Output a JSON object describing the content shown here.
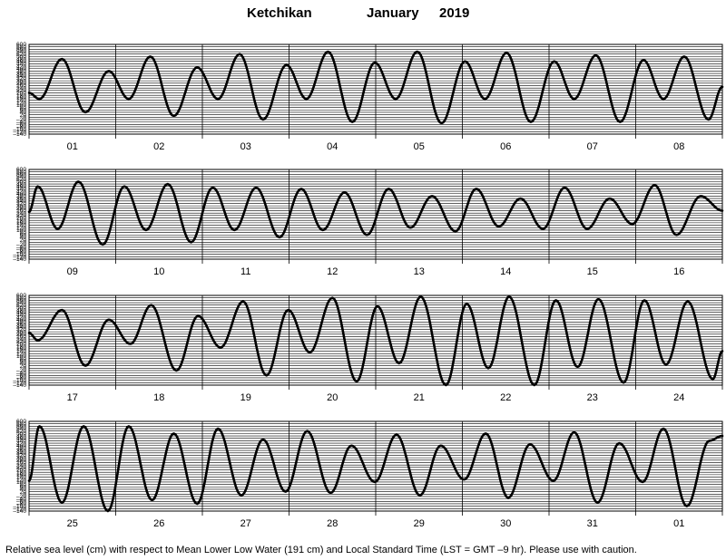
{
  "title": {
    "location": "Ketchikan",
    "month": "January",
    "year": "2019"
  },
  "footer": "Relative sea level (cm) with respect to Mean Lower Low Water (191 cm) and Local Standard Time (LST = GMT –9 hr). Please use with caution.",
  "chart_data": {
    "type": "line",
    "ylim": [
      -140,
      600
    ],
    "y_ticks": [
      -140,
      -120,
      -100,
      -80,
      -60,
      -40,
      -20,
      0,
      20,
      40,
      60,
      80,
      100,
      120,
      140,
      160,
      180,
      200,
      220,
      240,
      260,
      280,
      300,
      320,
      340,
      360,
      380,
      400,
      420,
      440,
      460,
      480,
      500,
      520,
      540,
      560,
      580,
      600
    ],
    "y_tick_labels": [
      "–140",
      "–120",
      "–100",
      "–80",
      "–60",
      "–40",
      "–20",
      "0",
      "20",
      "40",
      "60",
      "80",
      "100",
      "120",
      "140",
      "160",
      "180",
      "200",
      "220",
      "240",
      "260",
      "280",
      "300",
      "320",
      "340",
      "360",
      "380",
      "400",
      "420",
      "440",
      "460",
      "480",
      "500",
      "520",
      "540",
      "560",
      "580",
      "600"
    ],
    "grid": true,
    "panels": [
      {
        "days": [
          "01",
          "02",
          "03",
          "04",
          "05",
          "06",
          "07",
          "08"
        ],
        "series": [
          {
            "t": 0,
            "v": 200
          },
          {
            "t": 0.12,
            "v": 150
          },
          {
            "t": 0.38,
            "v": 480
          },
          {
            "t": 0.65,
            "v": 40
          },
          {
            "t": 0.92,
            "v": 380
          },
          {
            "t": 1.15,
            "v": 150
          },
          {
            "t": 1.4,
            "v": 500
          },
          {
            "t": 1.67,
            "v": 10
          },
          {
            "t": 1.94,
            "v": 410
          },
          {
            "t": 2.18,
            "v": 150
          },
          {
            "t": 2.43,
            "v": 520
          },
          {
            "t": 2.7,
            "v": -20
          },
          {
            "t": 2.97,
            "v": 430
          },
          {
            "t": 3.2,
            "v": 150
          },
          {
            "t": 3.45,
            "v": 540
          },
          {
            "t": 3.73,
            "v": -40
          },
          {
            "t": 3.99,
            "v": 450
          },
          {
            "t": 4.23,
            "v": 150
          },
          {
            "t": 4.48,
            "v": 540
          },
          {
            "t": 4.76,
            "v": -50
          },
          {
            "t": 5.03,
            "v": 460
          },
          {
            "t": 5.26,
            "v": 150
          },
          {
            "t": 5.51,
            "v": 530
          },
          {
            "t": 5.79,
            "v": -40
          },
          {
            "t": 6.06,
            "v": 460
          },
          {
            "t": 6.29,
            "v": 150
          },
          {
            "t": 6.54,
            "v": 510
          },
          {
            "t": 6.82,
            "v": -40
          },
          {
            "t": 7.09,
            "v": 470
          },
          {
            "t": 7.32,
            "v": 150
          },
          {
            "t": 7.56,
            "v": 500
          },
          {
            "t": 7.84,
            "v": -20
          },
          {
            "t": 8,
            "v": 250
          }
        ]
      },
      {
        "days": [
          "09",
          "10",
          "11",
          "12",
          "13",
          "14",
          "15",
          "16"
        ],
        "series": [
          {
            "t": 0,
            "v": 250
          },
          {
            "t": 0.1,
            "v": 460
          },
          {
            "t": 0.33,
            "v": 110
          },
          {
            "t": 0.57,
            "v": 500
          },
          {
            "t": 0.85,
            "v": -20
          },
          {
            "t": 1.1,
            "v": 460
          },
          {
            "t": 1.35,
            "v": 100
          },
          {
            "t": 1.6,
            "v": 480
          },
          {
            "t": 1.87,
            "v": 0
          },
          {
            "t": 2.12,
            "v": 450
          },
          {
            "t": 2.37,
            "v": 100
          },
          {
            "t": 2.62,
            "v": 450
          },
          {
            "t": 2.89,
            "v": 40
          },
          {
            "t": 3.14,
            "v": 440
          },
          {
            "t": 3.39,
            "v": 100
          },
          {
            "t": 3.64,
            "v": 410
          },
          {
            "t": 3.9,
            "v": 60
          },
          {
            "t": 4.15,
            "v": 440
          },
          {
            "t": 4.4,
            "v": 120
          },
          {
            "t": 4.65,
            "v": 380
          },
          {
            "t": 4.92,
            "v": 90
          },
          {
            "t": 5.16,
            "v": 440
          },
          {
            "t": 5.42,
            "v": 130
          },
          {
            "t": 5.67,
            "v": 360
          },
          {
            "t": 5.93,
            "v": 110
          },
          {
            "t": 6.18,
            "v": 450
          },
          {
            "t": 6.44,
            "v": 110
          },
          {
            "t": 6.7,
            "v": 360
          },
          {
            "t": 6.96,
            "v": 150
          },
          {
            "t": 7.22,
            "v": 470
          },
          {
            "t": 7.47,
            "v": 60
          },
          {
            "t": 7.75,
            "v": 380
          },
          {
            "t": 8,
            "v": 260
          }
        ]
      },
      {
        "days": [
          "17",
          "18",
          "19",
          "20",
          "21",
          "22",
          "23",
          "24"
        ],
        "series": [
          {
            "t": 0,
            "v": 290
          },
          {
            "t": 0.1,
            "v": 230
          },
          {
            "t": 0.38,
            "v": 480
          },
          {
            "t": 0.65,
            "v": 20
          },
          {
            "t": 0.92,
            "v": 400
          },
          {
            "t": 1.17,
            "v": 200
          },
          {
            "t": 1.41,
            "v": 520
          },
          {
            "t": 1.7,
            "v": -20
          },
          {
            "t": 1.95,
            "v": 430
          },
          {
            "t": 2.21,
            "v": 170
          },
          {
            "t": 2.47,
            "v": 550
          },
          {
            "t": 2.74,
            "v": -60
          },
          {
            "t": 2.99,
            "v": 480
          },
          {
            "t": 3.24,
            "v": 130
          },
          {
            "t": 3.5,
            "v": 580
          },
          {
            "t": 3.78,
            "v": -110
          },
          {
            "t": 4.02,
            "v": 510
          },
          {
            "t": 4.27,
            "v": 40
          },
          {
            "t": 4.52,
            "v": 590
          },
          {
            "t": 4.81,
            "v": -140
          },
          {
            "t": 5.05,
            "v": 530
          },
          {
            "t": 5.3,
            "v": 0
          },
          {
            "t": 5.54,
            "v": 590
          },
          {
            "t": 5.83,
            "v": -140
          },
          {
            "t": 6.08,
            "v": 560
          },
          {
            "t": 6.33,
            "v": 10
          },
          {
            "t": 6.57,
            "v": 570
          },
          {
            "t": 6.86,
            "v": -120
          },
          {
            "t": 7.1,
            "v": 560
          },
          {
            "t": 7.35,
            "v": 30
          },
          {
            "t": 7.6,
            "v": 550
          },
          {
            "t": 7.89,
            "v": -90
          },
          {
            "t": 8,
            "v": 140
          }
        ]
      },
      {
        "days": [
          "25",
          "26",
          "27",
          "28",
          "29",
          "30",
          "31",
          "01"
        ],
        "series": [
          {
            "t": 0,
            "v": 110
          },
          {
            "t": 0.12,
            "v": 560
          },
          {
            "t": 0.38,
            "v": -70
          },
          {
            "t": 0.63,
            "v": 560
          },
          {
            "t": 0.91,
            "v": -140
          },
          {
            "t": 1.15,
            "v": 560
          },
          {
            "t": 1.42,
            "v": -50
          },
          {
            "t": 1.67,
            "v": 500
          },
          {
            "t": 1.94,
            "v": -80
          },
          {
            "t": 2.18,
            "v": 540
          },
          {
            "t": 2.45,
            "v": -10
          },
          {
            "t": 2.7,
            "v": 450
          },
          {
            "t": 2.96,
            "v": 20
          },
          {
            "t": 3.21,
            "v": 520
          },
          {
            "t": 3.48,
            "v": 10
          },
          {
            "t": 3.72,
            "v": 400
          },
          {
            "t": 3.99,
            "v": 100
          },
          {
            "t": 4.24,
            "v": 490
          },
          {
            "t": 4.51,
            "v": -10
          },
          {
            "t": 4.75,
            "v": 400
          },
          {
            "t": 5.02,
            "v": 120
          },
          {
            "t": 5.27,
            "v": 500
          },
          {
            "t": 5.53,
            "v": -30
          },
          {
            "t": 5.78,
            "v": 410
          },
          {
            "t": 6.05,
            "v": 110
          },
          {
            "t": 6.29,
            "v": 510
          },
          {
            "t": 6.56,
            "v": -70
          },
          {
            "t": 6.81,
            "v": 420
          },
          {
            "t": 7.08,
            "v": 100
          },
          {
            "t": 7.32,
            "v": 540
          },
          {
            "t": 7.59,
            "v": -100
          },
          {
            "t": 7.85,
            "v": 440
          },
          {
            "t": 8,
            "v": 480
          }
        ]
      }
    ]
  }
}
